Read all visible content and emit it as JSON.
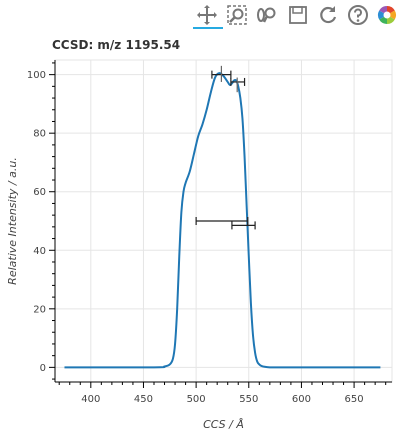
{
  "toolbar": {
    "tools": [
      {
        "name": "pan-icon",
        "active": true
      },
      {
        "name": "box-zoom-icon",
        "active": false
      },
      {
        "name": "wheel-zoom-icon",
        "active": false
      },
      {
        "name": "save-icon",
        "active": false
      },
      {
        "name": "reset-icon",
        "active": false
      },
      {
        "name": "help-icon",
        "active": false
      },
      {
        "name": "bokeh-logo-icon",
        "active": false
      }
    ],
    "accent_color": "#26aae1"
  },
  "chart_data": {
    "type": "line",
    "title": "CCSD: m/z 1195.54",
    "xlabel": "CCS / Å",
    "ylabel": "Relative Intensity / a.u.",
    "xlim": [
      366,
      686
    ],
    "ylim": [
      -5,
      105
    ],
    "xticks": [
      400,
      450,
      500,
      550,
      600,
      650
    ],
    "yticks": [
      0,
      20,
      40,
      60,
      80,
      100
    ],
    "grid": true,
    "line_color": "#1f77b4",
    "series": [
      {
        "x": [
          375,
          460,
          470,
          475,
          478,
          480,
          482,
          484,
          486,
          488,
          490,
          494,
          498,
          502,
          506,
          510,
          514,
          518,
          522,
          526,
          530,
          532,
          534,
          536,
          538,
          540,
          542,
          544,
          546,
          548,
          550,
          552,
          554,
          556,
          558,
          560,
          562,
          565,
          570,
          575,
          580,
          600,
          675
        ],
        "y": [
          0,
          0,
          0.3,
          1,
          3,
          8,
          20,
          38,
          53,
          60,
          63,
          67,
          73,
          79,
          83,
          88,
          94,
          99,
          100.5,
          99.5,
          97.5,
          96.5,
          97,
          98,
          98,
          96,
          92,
          85,
          72,
          55,
          38,
          22,
          11,
          5,
          2,
          1,
          0.5,
          0.2,
          0,
          0,
          0,
          0,
          0
        ]
      }
    ],
    "error_bars": [
      {
        "y": 50,
        "x_low": 500,
        "x_high": 549
      },
      {
        "y": 48.5,
        "x_low": 534,
        "x_high": 556
      },
      {
        "y": 100,
        "x_low": 515,
        "x_high": 533
      },
      {
        "y": 97.5,
        "x_low": 533,
        "x_high": 546
      }
    ],
    "peak_markers": [
      {
        "x": 524,
        "y_low": 97.5,
        "y_high": 103
      },
      {
        "x": 539,
        "y_low": 94,
        "y_high": 99
      }
    ]
  }
}
